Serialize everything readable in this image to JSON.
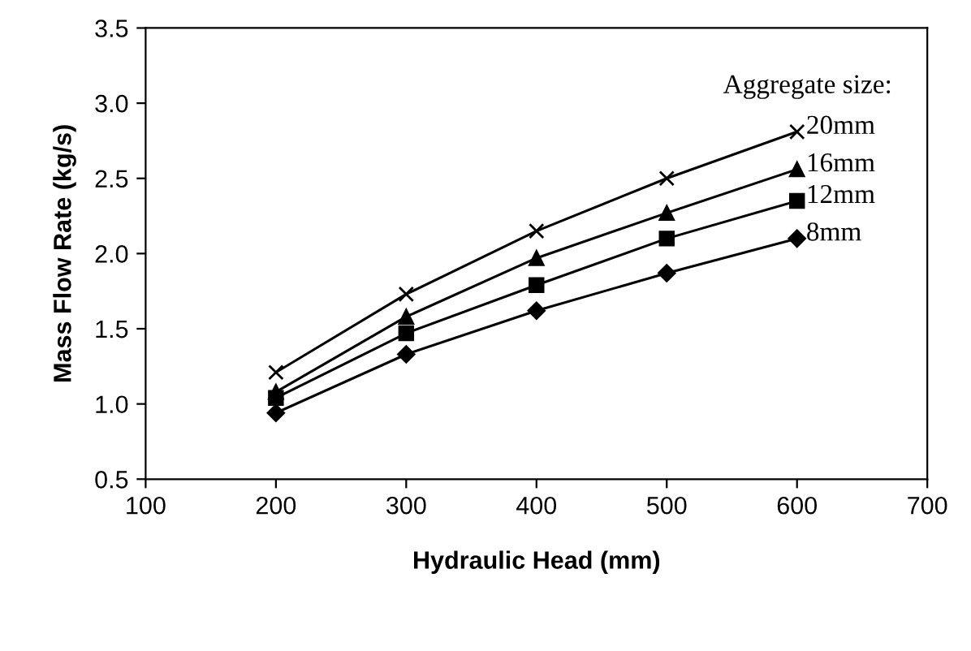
{
  "chart_data": {
    "type": "line",
    "xlabel": "Hydraulic Head (mm)",
    "ylabel": "Mass Flow Rate (kg/s)",
    "legend_title": "Aggregate size:",
    "x": [
      200,
      300,
      400,
      500,
      600
    ],
    "series": [
      {
        "name": "20mm",
        "color": "#000000",
        "marker": "cross",
        "values": [
          1.21,
          1.73,
          2.15,
          2.5,
          2.81
        ]
      },
      {
        "name": "16mm",
        "color": "#000000",
        "marker": "triangle",
        "values": [
          1.08,
          1.58,
          1.97,
          2.27,
          2.56
        ]
      },
      {
        "name": "12mm",
        "color": "#000000",
        "marker": "square",
        "values": [
          1.04,
          1.47,
          1.79,
          2.1,
          2.35
        ]
      },
      {
        "name": "8mm",
        "color": "#000000",
        "marker": "diamond",
        "values": [
          0.94,
          1.33,
          1.62,
          1.87,
          2.1
        ]
      }
    ],
    "xlim": [
      100,
      700
    ],
    "xticks": [
      100,
      200,
      300,
      400,
      500,
      600,
      700
    ],
    "ylim": [
      0.5,
      3.5
    ],
    "yticks": [
      {
        "value": 0.5,
        "label": "0.5"
      },
      {
        "value": 1.0,
        "label": "1.0"
      },
      {
        "value": 1.5,
        "label": "1.5"
      },
      {
        "value": 2.0,
        "label": "2.0"
      },
      {
        "value": 2.5,
        "label": "2.5"
      },
      {
        "value": 3.0,
        "label": "3.0"
      },
      {
        "value": 3.5,
        "label": "3.5"
      }
    ],
    "grid": false,
    "legend": "top right",
    "line_style": "solid"
  }
}
